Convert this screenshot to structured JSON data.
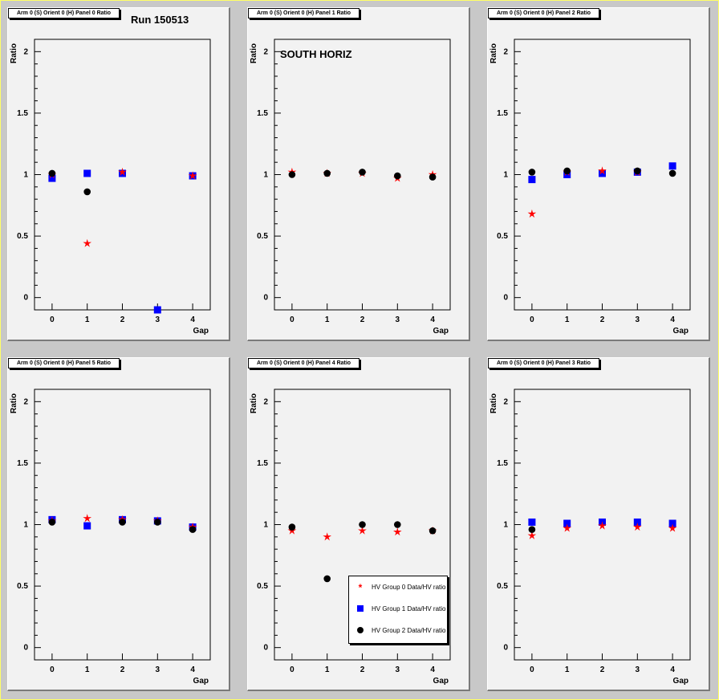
{
  "annotations": {
    "run": "Run 150513",
    "orientation": "SOUTH HORIZ"
  },
  "colors": {
    "group0": "#ff0000",
    "group1": "#0000ff",
    "group2": "#000000",
    "frame_fill": "#f2f2f2",
    "canvas": "#c8c8c8"
  },
  "legend": [
    {
      "label": "HV Group 0 Data/HV ratio",
      "marker": "star",
      "color": "#ff0000"
    },
    {
      "label": "HV Group 1 Data/HV ratio",
      "marker": "square",
      "color": "#0000ff"
    },
    {
      "label": "HV Group 2 Data/HV ratio",
      "marker": "circle",
      "color": "#000000"
    }
  ],
  "chart_data": [
    {
      "type": "scatter",
      "title": "Arm 0 (S) Orient 0 (H) Panel 0 Ratio",
      "xlabel": "Gap",
      "ylabel": "Ratio",
      "x": [
        0,
        1,
        2,
        3,
        4
      ],
      "xlim": [
        -0.5,
        4.5
      ],
      "ylim": [
        -0.1,
        2.1
      ],
      "xticks": [
        "0",
        "1",
        "2",
        "3",
        "4"
      ],
      "yticks": [
        "0",
        "0.5",
        "1",
        "1.5",
        "2"
      ],
      "series": [
        {
          "name": "HV Group 0 Data/HV ratio",
          "marker": "star",
          "values": [
            1.0,
            0.44,
            1.02,
            null,
            0.99
          ]
        },
        {
          "name": "HV Group 1 Data/HV ratio",
          "marker": "square",
          "values": [
            0.97,
            1.01,
            1.01,
            -0.1,
            0.99
          ]
        },
        {
          "name": "HV Group 2 Data/HV ratio",
          "marker": "circle",
          "values": [
            1.01,
            0.86,
            null,
            null,
            null
          ]
        }
      ]
    },
    {
      "type": "scatter",
      "title": "Arm 0 (S) Orient 0 (H) Panel 1 Ratio",
      "xlabel": "Gap",
      "ylabel": "Ratio",
      "x": [
        0,
        1,
        2,
        3,
        4
      ],
      "xlim": [
        -0.5,
        4.5
      ],
      "ylim": [
        -0.1,
        2.1
      ],
      "xticks": [
        "0",
        "1",
        "2",
        "3",
        "4"
      ],
      "yticks": [
        "0",
        "0.5",
        "1",
        "1.5",
        "2"
      ],
      "series": [
        {
          "name": "HV Group 0 Data/HV ratio",
          "marker": "star",
          "values": [
            1.02,
            1.01,
            1.01,
            0.97,
            1.0
          ]
        },
        {
          "name": "HV Group 1 Data/HV ratio",
          "marker": "square",
          "values": [
            null,
            null,
            null,
            null,
            null
          ]
        },
        {
          "name": "HV Group 2 Data/HV ratio",
          "marker": "circle",
          "values": [
            1.0,
            1.01,
            1.02,
            0.99,
            0.98
          ]
        }
      ]
    },
    {
      "type": "scatter",
      "title": "Arm 0 (S) Orient 0 (H) Panel 2 Ratio",
      "xlabel": "Gap",
      "ylabel": "Ratio",
      "x": [
        0,
        1,
        2,
        3,
        4
      ],
      "xlim": [
        -0.5,
        4.5
      ],
      "ylim": [
        -0.1,
        2.1
      ],
      "xticks": [
        "0",
        "1",
        "2",
        "3",
        "4"
      ],
      "yticks": [
        "0",
        "0.5",
        "1",
        "1.5",
        "2"
      ],
      "series": [
        {
          "name": "HV Group 0 Data/HV ratio",
          "marker": "star",
          "values": [
            0.68,
            1.02,
            1.03,
            1.02,
            null
          ]
        },
        {
          "name": "HV Group 1 Data/HV ratio",
          "marker": "square",
          "values": [
            0.96,
            1.0,
            1.01,
            1.02,
            1.07
          ]
        },
        {
          "name": "HV Group 2 Data/HV ratio",
          "marker": "circle",
          "values": [
            1.02,
            1.03,
            null,
            1.03,
            1.01
          ]
        }
      ]
    },
    {
      "type": "scatter",
      "title": "Arm 0 (S) Orient 0 (H) Panel 5 Ratio",
      "xlabel": "Gap",
      "ylabel": "Ratio",
      "x": [
        0,
        1,
        2,
        3,
        4
      ],
      "xlim": [
        -0.5,
        4.5
      ],
      "ylim": [
        -0.1,
        2.1
      ],
      "xticks": [
        "0",
        "1",
        "2",
        "3",
        "4"
      ],
      "yticks": [
        "0",
        "0.5",
        "1",
        "1.5",
        "2"
      ],
      "series": [
        {
          "name": "HV Group 0 Data/HV ratio",
          "marker": "star",
          "values": [
            1.03,
            1.05,
            1.04,
            1.03,
            0.98
          ]
        },
        {
          "name": "HV Group 1 Data/HV ratio",
          "marker": "square",
          "values": [
            1.04,
            0.99,
            1.04,
            1.03,
            0.98
          ]
        },
        {
          "name": "HV Group 2 Data/HV ratio",
          "marker": "circle",
          "values": [
            1.02,
            null,
            1.02,
            1.02,
            0.96
          ]
        }
      ]
    },
    {
      "type": "scatter",
      "title": "Arm 0 (S) Orient 0 (H) Panel 4 Ratio",
      "xlabel": "Gap",
      "ylabel": "Ratio",
      "x": [
        0,
        1,
        2,
        3,
        4
      ],
      "xlim": [
        -0.5,
        4.5
      ],
      "ylim": [
        -0.1,
        2.1
      ],
      "xticks": [
        "0",
        "1",
        "2",
        "3",
        "4"
      ],
      "yticks": [
        "0",
        "0.5",
        "1",
        "1.5",
        "2"
      ],
      "series": [
        {
          "name": "HV Group 0 Data/HV ratio",
          "marker": "star",
          "values": [
            0.95,
            0.9,
            0.95,
            0.94,
            0.95
          ]
        },
        {
          "name": "HV Group 1 Data/HV ratio",
          "marker": "square",
          "values": [
            null,
            null,
            null,
            null,
            null
          ]
        },
        {
          "name": "HV Group 2 Data/HV ratio",
          "marker": "circle",
          "values": [
            0.98,
            0.56,
            1.0,
            1.0,
            0.95
          ]
        }
      ]
    },
    {
      "type": "scatter",
      "title": "Arm 0 (S) Orient 0 (H) Panel 3 Ratio",
      "xlabel": "Gap",
      "ylabel": "Ratio",
      "x": [
        0,
        1,
        2,
        3,
        4
      ],
      "xlim": [
        -0.5,
        4.5
      ],
      "ylim": [
        -0.1,
        2.1
      ],
      "xticks": [
        "0",
        "1",
        "2",
        "3",
        "4"
      ],
      "yticks": [
        "0",
        "0.5",
        "1",
        "1.5",
        "2"
      ],
      "series": [
        {
          "name": "HV Group 0 Data/HV ratio",
          "marker": "star",
          "values": [
            0.91,
            0.97,
            0.99,
            0.98,
            0.97
          ]
        },
        {
          "name": "HV Group 1 Data/HV ratio",
          "marker": "square",
          "values": [
            1.02,
            1.01,
            1.02,
            1.02,
            1.01
          ]
        },
        {
          "name": "HV Group 2 Data/HV ratio",
          "marker": "circle",
          "values": [
            0.96,
            null,
            null,
            null,
            null
          ]
        }
      ]
    }
  ]
}
